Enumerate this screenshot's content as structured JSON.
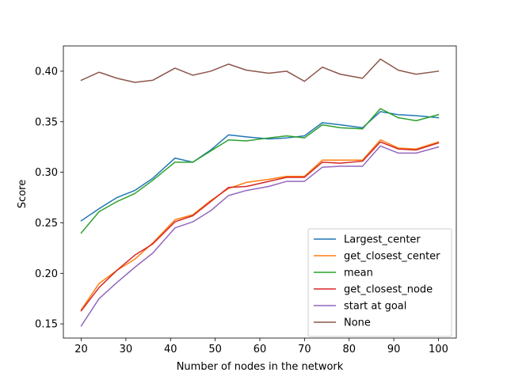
{
  "chart_data": {
    "type": "line",
    "xlabel": "Number of nodes in the network",
    "ylabel": "Score",
    "xlim": [
      16.0,
      104.0
    ],
    "ylim": [
      0.136,
      0.425
    ],
    "xticks": [
      20,
      30,
      40,
      50,
      60,
      70,
      80,
      90,
      100
    ],
    "yticks": [
      0.15,
      0.2,
      0.25,
      0.3,
      0.35,
      0.4
    ],
    "ytick_labels": [
      "0.15",
      "0.20",
      "0.25",
      "0.30",
      "0.35",
      "0.40"
    ],
    "grid": false,
    "legend_position": "lower right",
    "x": [
      20,
      24,
      28,
      32,
      36,
      41,
      45,
      49,
      53,
      57,
      62,
      66,
      70,
      74,
      78,
      83,
      87,
      91,
      95,
      100
    ],
    "series": [
      {
        "name": "Largest_center",
        "color": "#1f77b4",
        "values": [
          0.252,
          0.264,
          0.275,
          0.282,
          0.294,
          0.314,
          0.31,
          0.322,
          0.337,
          0.335,
          0.333,
          0.334,
          0.336,
          0.349,
          0.347,
          0.344,
          0.36,
          0.357,
          0.356,
          0.354
        ]
      },
      {
        "name": "get_closest_center",
        "color": "#ff7f0e",
        "values": [
          0.164,
          0.19,
          0.203,
          0.214,
          0.23,
          0.253,
          0.258,
          0.272,
          0.284,
          0.29,
          0.293,
          0.296,
          0.296,
          0.312,
          0.312,
          0.312,
          0.332,
          0.324,
          0.323,
          0.33
        ]
      },
      {
        "name": "mean",
        "color": "#2ca02c",
        "values": [
          0.24,
          0.261,
          0.271,
          0.279,
          0.292,
          0.31,
          0.31,
          0.321,
          0.332,
          0.331,
          0.334,
          0.336,
          0.334,
          0.347,
          0.344,
          0.343,
          0.363,
          0.354,
          0.351,
          0.357
        ]
      },
      {
        "name": "get_closest_node",
        "color": "#d62728",
        "values": [
          0.163,
          0.186,
          0.203,
          0.218,
          0.229,
          0.251,
          0.257,
          0.271,
          0.285,
          0.286,
          0.291,
          0.295,
          0.295,
          0.31,
          0.309,
          0.311,
          0.33,
          0.323,
          0.322,
          0.329
        ]
      },
      {
        "name": "start at goal",
        "color": "#9467bd",
        "values": [
          0.148,
          0.175,
          0.191,
          0.206,
          0.22,
          0.245,
          0.251,
          0.262,
          0.277,
          0.282,
          0.286,
          0.291,
          0.291,
          0.305,
          0.306,
          0.306,
          0.326,
          0.319,
          0.319,
          0.325
        ]
      },
      {
        "name": "None",
        "color": "#8c564b",
        "values": [
          0.391,
          0.399,
          0.393,
          0.389,
          0.391,
          0.403,
          0.396,
          0.4,
          0.407,
          0.401,
          0.398,
          0.4,
          0.39,
          0.404,
          0.397,
          0.393,
          0.412,
          0.401,
          0.397,
          0.4
        ]
      }
    ]
  }
}
